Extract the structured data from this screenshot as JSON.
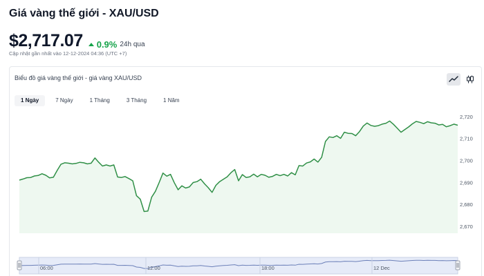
{
  "header": {
    "title": "Giá vàng thế giới - XAU/USD",
    "price": "$2,717.07",
    "change": "0.9%",
    "period": "24h qua",
    "updated": "Cập nhật gần nhất vào 12-12-2024 04:36 (UTC +7)"
  },
  "chart_panel": {
    "title": "Biểu đồ giá vàng thế giới - giá vàng XAU/USD",
    "chart_type_buttons": [
      {
        "icon": "line-chart-icon",
        "active": true
      },
      {
        "icon": "candlestick-icon",
        "active": false
      }
    ],
    "tabs": [
      {
        "label": "1 Ngày",
        "active": true
      },
      {
        "label": "7 Ngày",
        "active": false
      },
      {
        "label": "1 Tháng",
        "active": false
      },
      {
        "label": "3 Tháng",
        "active": false
      },
      {
        "label": "1 Năm",
        "active": false
      }
    ]
  },
  "colors": {
    "line": "#2f8f46",
    "fill": "#eef8f0",
    "accent_up": "#16a34a"
  },
  "chart_data": {
    "type": "area",
    "title": "",
    "xlabel": "",
    "ylabel": "",
    "ylim": [
      2667,
      2722
    ],
    "y_ticks": [
      "2,720",
      "2,710",
      "2,700",
      "2,690",
      "2,680",
      "2,670"
    ],
    "y_tick_values": [
      2720,
      2710,
      2700,
      2690,
      2680,
      2670
    ],
    "grid": false,
    "series": [
      {
        "values": [
          2691.2,
          2691.7,
          2692.3,
          2692.4,
          2693.1,
          2693.3,
          2694.1,
          2693.4,
          2692.2,
          2692.5,
          2695.6,
          2698.4,
          2699.1,
          2698.9,
          2698.6,
          2698.8,
          2699.3,
          2699.1,
          2698.6,
          2698.9,
          2701.3,
          2699.3,
          2697.6,
          2698.1,
          2697.6,
          2698.1,
          2692.6,
          2692.4,
          2692.8,
          2691.9,
          2690.9,
          2684.1,
          2682.5,
          2676.9,
          2677.1,
          2683.4,
          2686.1,
          2690.1,
          2694.4,
          2693.0,
          2693.8,
          2690.0,
          2686.8,
          2688.6,
          2687.6,
          2688.1,
          2690.1,
          2690.5,
          2691.6,
          2689.5,
          2687.7,
          2685.6,
          2688.8,
          2690.5,
          2691.6,
          2692.7,
          2694.6,
          2696.0,
          2690.9,
          2693.7,
          2692.4,
          2692.7,
          2693.9,
          2692.7,
          2693.8,
          2693.4,
          2692.5,
          2692.9,
          2693.8,
          2693.2,
          2693.8,
          2693.1,
          2694.6,
          2693.6,
          2697.8,
          2697.6,
          2699.0,
          2699.5,
          2700.8,
          2699.4,
          2701.6,
          2708.8,
          2710.9,
          2710.6,
          2711.4,
          2710.2,
          2713.0,
          2712.5,
          2712.4,
          2711.4,
          2713.3,
          2715.8,
          2717.2,
          2716.1,
          2715.7,
          2716.0,
          2716.7,
          2717.1,
          2718.1,
          2716.6,
          2714.8,
          2713.0,
          2714.2,
          2715.4,
          2716.8,
          2717.9,
          2717.5,
          2716.9,
          2717.8,
          2717.3,
          2717.1,
          2716.3,
          2716.6,
          2715.5,
          2716.0,
          2716.7,
          2716.2
        ]
      }
    ],
    "navigator": {
      "labels": [
        "06:00",
        "12:00",
        "18:00",
        "12 Dec"
      ]
    }
  }
}
